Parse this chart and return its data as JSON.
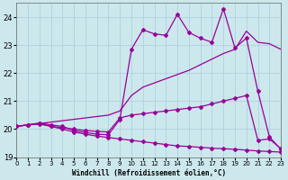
{
  "background_color": "#cce8ec",
  "grid_color": "#aaccdd",
  "line_color": "#990099",
  "xlim": [
    0,
    23
  ],
  "ylim": [
    19,
    24.5
  ],
  "yticks": [
    19,
    20,
    21,
    22,
    23,
    24
  ],
  "xticks": [
    0,
    1,
    2,
    3,
    4,
    5,
    6,
    7,
    8,
    9,
    10,
    11,
    12,
    13,
    14,
    15,
    16,
    17,
    18,
    19,
    20,
    21,
    22,
    23
  ],
  "xlabel": "Windchill (Refroidissement éolien,°C)",
  "line_bottom_x": [
    0,
    1,
    2,
    3,
    4,
    5,
    6,
    7,
    8,
    9,
    10,
    11,
    12,
    13,
    14,
    15,
    16,
    17,
    18,
    19,
    20,
    21,
    22,
    23
  ],
  "line_bottom_y": [
    20.1,
    20.15,
    20.18,
    20.1,
    20.0,
    19.9,
    19.82,
    19.75,
    19.7,
    19.65,
    19.6,
    19.55,
    19.5,
    19.45,
    19.4,
    19.38,
    19.35,
    19.32,
    19.3,
    19.28,
    19.25,
    19.22,
    19.2,
    19.18
  ],
  "line_mid_lower_x": [
    0,
    1,
    2,
    3,
    4,
    5,
    6,
    7,
    8,
    9,
    10,
    11,
    12,
    13,
    14,
    15,
    16,
    17,
    18,
    19,
    20,
    21,
    22,
    23
  ],
  "line_mid_lower_y": [
    20.1,
    20.15,
    20.2,
    20.1,
    20.05,
    20.0,
    19.95,
    19.92,
    19.9,
    20.4,
    20.5,
    20.55,
    20.6,
    20.65,
    20.7,
    20.75,
    20.8,
    20.9,
    21.0,
    21.1,
    21.2,
    19.6,
    19.65,
    19.3
  ],
  "line_mid_upper_x": [
    0,
    1,
    2,
    3,
    4,
    5,
    6,
    7,
    8,
    9,
    10,
    11,
    12,
    13,
    14,
    15,
    16,
    17,
    18,
    19,
    20,
    21,
    22,
    23
  ],
  "line_mid_upper_y": [
    20.1,
    20.15,
    20.2,
    20.25,
    20.3,
    20.35,
    20.4,
    20.45,
    20.5,
    20.65,
    21.2,
    21.5,
    21.65,
    21.8,
    21.95,
    22.1,
    22.3,
    22.5,
    22.7,
    22.85,
    23.5,
    23.1,
    23.05,
    22.85
  ],
  "line_top_x": [
    0,
    1,
    2,
    3,
    4,
    5,
    6,
    7,
    8,
    9,
    10,
    11,
    12,
    13,
    14,
    15,
    16,
    17,
    18,
    19,
    20,
    21,
    22,
    23
  ],
  "line_top_y": [
    20.1,
    20.15,
    20.22,
    20.15,
    20.1,
    19.95,
    19.88,
    19.82,
    19.8,
    20.35,
    22.85,
    23.55,
    23.4,
    23.35,
    24.1,
    23.45,
    23.25,
    23.1,
    24.3,
    22.9,
    23.25,
    21.35,
    19.72,
    19.28
  ]
}
